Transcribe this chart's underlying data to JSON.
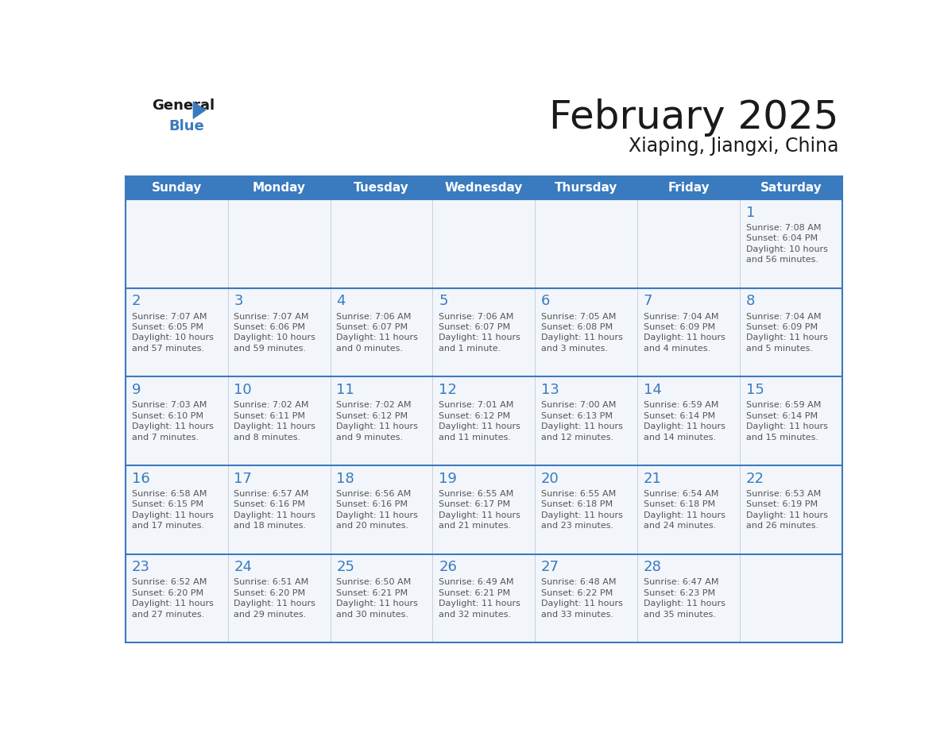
{
  "title": "February 2025",
  "subtitle": "Xiaping, Jiangxi, China",
  "header_color": "#3a7abf",
  "header_text_color": "#ffffff",
  "day_headers": [
    "Sunday",
    "Monday",
    "Tuesday",
    "Wednesday",
    "Thursday",
    "Friday",
    "Saturday"
  ],
  "days": [
    {
      "day": 1,
      "col": 6,
      "row": 0,
      "sunrise": "7:08 AM",
      "sunset": "6:04 PM",
      "dl_hours": "10 hours",
      "dl_and": "56 minutes."
    },
    {
      "day": 2,
      "col": 0,
      "row": 1,
      "sunrise": "7:07 AM",
      "sunset": "6:05 PM",
      "dl_hours": "10 hours",
      "dl_and": "57 minutes."
    },
    {
      "day": 3,
      "col": 1,
      "row": 1,
      "sunrise": "7:07 AM",
      "sunset": "6:06 PM",
      "dl_hours": "10 hours",
      "dl_and": "59 minutes."
    },
    {
      "day": 4,
      "col": 2,
      "row": 1,
      "sunrise": "7:06 AM",
      "sunset": "6:07 PM",
      "dl_hours": "11 hours",
      "dl_and": "0 minutes."
    },
    {
      "day": 5,
      "col": 3,
      "row": 1,
      "sunrise": "7:06 AM",
      "sunset": "6:07 PM",
      "dl_hours": "11 hours",
      "dl_and": "1 minute."
    },
    {
      "day": 6,
      "col": 4,
      "row": 1,
      "sunrise": "7:05 AM",
      "sunset": "6:08 PM",
      "dl_hours": "11 hours",
      "dl_and": "3 minutes."
    },
    {
      "day": 7,
      "col": 5,
      "row": 1,
      "sunrise": "7:04 AM",
      "sunset": "6:09 PM",
      "dl_hours": "11 hours",
      "dl_and": "4 minutes."
    },
    {
      "day": 8,
      "col": 6,
      "row": 1,
      "sunrise": "7:04 AM",
      "sunset": "6:09 PM",
      "dl_hours": "11 hours",
      "dl_and": "5 minutes."
    },
    {
      "day": 9,
      "col": 0,
      "row": 2,
      "sunrise": "7:03 AM",
      "sunset": "6:10 PM",
      "dl_hours": "11 hours",
      "dl_and": "7 minutes."
    },
    {
      "day": 10,
      "col": 1,
      "row": 2,
      "sunrise": "7:02 AM",
      "sunset": "6:11 PM",
      "dl_hours": "11 hours",
      "dl_and": "8 minutes."
    },
    {
      "day": 11,
      "col": 2,
      "row": 2,
      "sunrise": "7:02 AM",
      "sunset": "6:12 PM",
      "dl_hours": "11 hours",
      "dl_and": "9 minutes."
    },
    {
      "day": 12,
      "col": 3,
      "row": 2,
      "sunrise": "7:01 AM",
      "sunset": "6:12 PM",
      "dl_hours": "11 hours",
      "dl_and": "11 minutes."
    },
    {
      "day": 13,
      "col": 4,
      "row": 2,
      "sunrise": "7:00 AM",
      "sunset": "6:13 PM",
      "dl_hours": "11 hours",
      "dl_and": "12 minutes."
    },
    {
      "day": 14,
      "col": 5,
      "row": 2,
      "sunrise": "6:59 AM",
      "sunset": "6:14 PM",
      "dl_hours": "11 hours",
      "dl_and": "14 minutes."
    },
    {
      "day": 15,
      "col": 6,
      "row": 2,
      "sunrise": "6:59 AM",
      "sunset": "6:14 PM",
      "dl_hours": "11 hours",
      "dl_and": "15 minutes."
    },
    {
      "day": 16,
      "col": 0,
      "row": 3,
      "sunrise": "6:58 AM",
      "sunset": "6:15 PM",
      "dl_hours": "11 hours",
      "dl_and": "17 minutes."
    },
    {
      "day": 17,
      "col": 1,
      "row": 3,
      "sunrise": "6:57 AM",
      "sunset": "6:16 PM",
      "dl_hours": "11 hours",
      "dl_and": "18 minutes."
    },
    {
      "day": 18,
      "col": 2,
      "row": 3,
      "sunrise": "6:56 AM",
      "sunset": "6:16 PM",
      "dl_hours": "11 hours",
      "dl_and": "20 minutes."
    },
    {
      "day": 19,
      "col": 3,
      "row": 3,
      "sunrise": "6:55 AM",
      "sunset": "6:17 PM",
      "dl_hours": "11 hours",
      "dl_and": "21 minutes."
    },
    {
      "day": 20,
      "col": 4,
      "row": 3,
      "sunrise": "6:55 AM",
      "sunset": "6:18 PM",
      "dl_hours": "11 hours",
      "dl_and": "23 minutes."
    },
    {
      "day": 21,
      "col": 5,
      "row": 3,
      "sunrise": "6:54 AM",
      "sunset": "6:18 PM",
      "dl_hours": "11 hours",
      "dl_and": "24 minutes."
    },
    {
      "day": 22,
      "col": 6,
      "row": 3,
      "sunrise": "6:53 AM",
      "sunset": "6:19 PM",
      "dl_hours": "11 hours",
      "dl_and": "26 minutes."
    },
    {
      "day": 23,
      "col": 0,
      "row": 4,
      "sunrise": "6:52 AM",
      "sunset": "6:20 PM",
      "dl_hours": "11 hours",
      "dl_and": "27 minutes."
    },
    {
      "day": 24,
      "col": 1,
      "row": 4,
      "sunrise": "6:51 AM",
      "sunset": "6:20 PM",
      "dl_hours": "11 hours",
      "dl_and": "29 minutes."
    },
    {
      "day": 25,
      "col": 2,
      "row": 4,
      "sunrise": "6:50 AM",
      "sunset": "6:21 PM",
      "dl_hours": "11 hours",
      "dl_and": "30 minutes."
    },
    {
      "day": 26,
      "col": 3,
      "row": 4,
      "sunrise": "6:49 AM",
      "sunset": "6:21 PM",
      "dl_hours": "11 hours",
      "dl_and": "32 minutes."
    },
    {
      "day": 27,
      "col": 4,
      "row": 4,
      "sunrise": "6:48 AM",
      "sunset": "6:22 PM",
      "dl_hours": "11 hours",
      "dl_and": "33 minutes."
    },
    {
      "day": 28,
      "col": 5,
      "row": 4,
      "sunrise": "6:47 AM",
      "sunset": "6:23 PM",
      "dl_hours": "11 hours",
      "dl_and": "35 minutes."
    }
  ],
  "num_rows": 5,
  "num_cols": 7,
  "line_color": "#3a7abf",
  "day_number_color": "#3a7abf",
  "info_text_color": "#555555",
  "title_color": "#1a1a1a",
  "subtitle_color": "#1a1a1a",
  "cell_bg": "#f2f6fb",
  "logo_general_color": "#1a1a1a",
  "logo_blue_color": "#3a7abf",
  "logo_triangle_color": "#3a7abf"
}
